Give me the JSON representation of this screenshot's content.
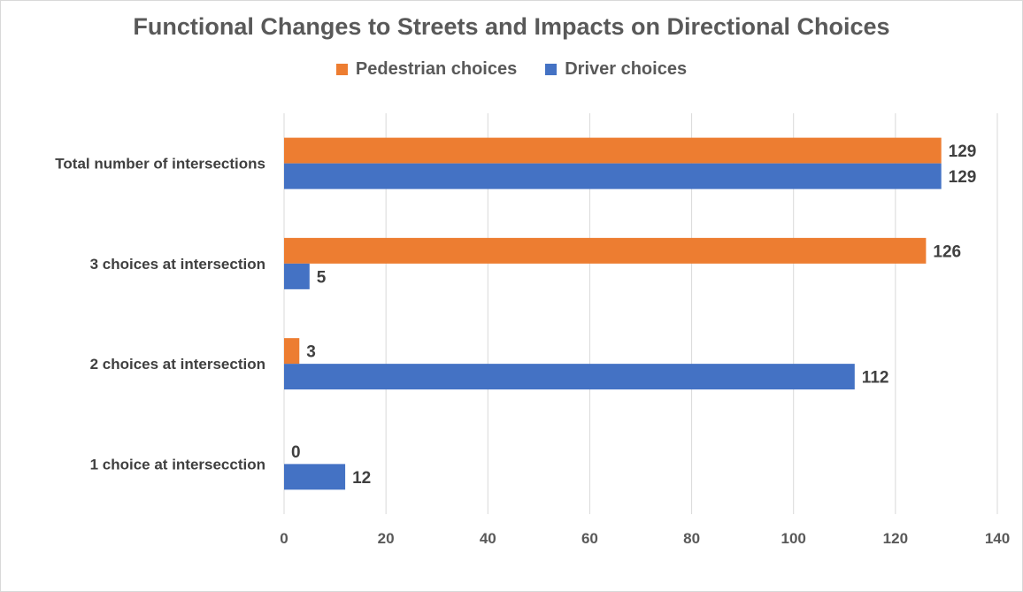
{
  "chart_data": {
    "type": "bar",
    "orientation": "horizontal",
    "title": "Functional Changes to Streets and Impacts on Directional Choices",
    "categories": [
      "Total number of intersections",
      "3 choices at intersection",
      "2 choices at intersection",
      "1 choice at intersecction"
    ],
    "series": [
      {
        "name": "Pedestrian choices",
        "color": "#ed7d31",
        "values": [
          129,
          126,
          3,
          0
        ]
      },
      {
        "name": "Driver choices",
        "color": "#4472c4",
        "values": [
          129,
          5,
          112,
          12
        ]
      }
    ],
    "xlim": [
      0,
      140
    ],
    "xticks": [
      0,
      20,
      40,
      60,
      80,
      100,
      120,
      140
    ],
    "grid": "vertical",
    "legend_position": "top",
    "data_labels": true
  }
}
